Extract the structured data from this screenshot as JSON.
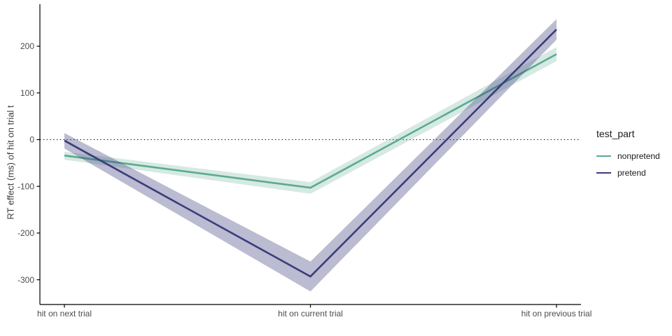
{
  "chart_data": {
    "type": "line",
    "title": "",
    "x_categories": [
      "hit on next trial",
      "hit on current trial",
      "hit on previous trial"
    ],
    "xlabel": "",
    "ylabel": "RT effect (ms) of hit on trial t",
    "ylim": [
      -353,
      290
    ],
    "yticks": [
      -300,
      -200,
      -100,
      0,
      100,
      200
    ],
    "grid": "off",
    "background": "#ffffff",
    "reference_line": {
      "y": 0,
      "style": "dotted",
      "color": "#000000"
    },
    "legend": {
      "title": "test_part",
      "position": "right",
      "entries": [
        {
          "label": "nonpretend",
          "color": "#5aaa92"
        },
        {
          "label": "pretend",
          "color": "#3c3b7c"
        }
      ]
    },
    "series": [
      {
        "name": "nonpretend",
        "color": "#5aaa92",
        "ribbon_color": "rgba(90,168,144,0.25)",
        "values": [
          -34,
          -103,
          183
        ],
        "ci_lower": [
          -43,
          -116,
          168
        ],
        "ci_upper": [
          -26,
          -91,
          198
        ]
      },
      {
        "name": "pretend",
        "color": "#3c3b7c",
        "ribbon_color": "rgba(60,59,124,0.35)",
        "values": [
          -2,
          -293,
          236
        ],
        "ci_lower": [
          -19,
          -325,
          214
        ],
        "ci_upper": [
          14,
          -261,
          258
        ]
      }
    ],
    "axis": {
      "tick_label_color": "#4d4d4d",
      "axis_line_color": "#000000"
    }
  }
}
